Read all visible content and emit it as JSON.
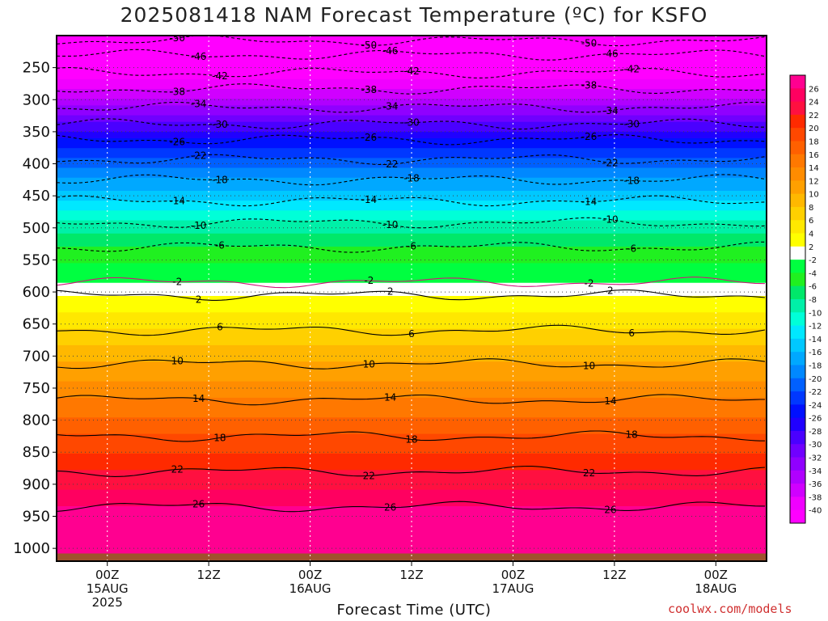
{
  "chart_data": {
    "type": "heatmap",
    "title": "2025081418 NAM Forecast Temperature (ºC) for KSFO",
    "xlabel": "Forecast Time (UTC)",
    "credit": "coolwx.com/models",
    "y_axis": {
      "ticks": [
        250,
        300,
        350,
        400,
        450,
        500,
        550,
        600,
        650,
        700,
        750,
        800,
        850,
        900,
        950,
        1000
      ],
      "range": [
        200,
        1020
      ],
      "direction": "pressure decreasing upward"
    },
    "x_axis": {
      "range_hours": [
        -6,
        78
      ],
      "ticks": [
        {
          "hour": 0,
          "lines": [
            "00Z",
            "15AUG",
            "2025"
          ]
        },
        {
          "hour": 12,
          "lines": [
            "12Z"
          ]
        },
        {
          "hour": 24,
          "lines": [
            "00Z",
            "16AUG"
          ]
        },
        {
          "hour": 36,
          "lines": [
            "12Z"
          ]
        },
        {
          "hour": 48,
          "lines": [
            "00Z",
            "17AUG"
          ]
        },
        {
          "hour": 60,
          "lines": [
            "12Z"
          ]
        },
        {
          "hour": 72,
          "lines": [
            "00Z",
            "18AUG"
          ]
        }
      ]
    },
    "colorbar": {
      "labels": [
        26,
        24,
        22,
        20,
        18,
        16,
        14,
        12,
        10,
        8,
        6,
        4,
        2,
        -2,
        -4,
        -6,
        -8,
        -10,
        -12,
        -14,
        -16,
        -18,
        -20,
        -22,
        -24,
        -26,
        -28,
        -30,
        -32,
        -34,
        -36,
        -38,
        -40
      ],
      "colors": [
        "#ff0090",
        "#ff0060",
        "#ff1040",
        "#ff2a00",
        "#ff4800",
        "#ff6000",
        "#ff7800",
        "#ff8c00",
        "#ffa000",
        "#ffb800",
        "#ffd000",
        "#ffe800",
        "#ffff00",
        "#ffffff",
        "#00ff40",
        "#20f020",
        "#00e86a",
        "#00f0a8",
        "#00ffd8",
        "#00e8ff",
        "#00c8ff",
        "#00a8ff",
        "#0088ff",
        "#0060ff",
        "#0038ff",
        "#0010ff",
        "#2000ff",
        "#4a00ff",
        "#7000ff",
        "#9000ff",
        "#b000ff",
        "#d000ff",
        "#f000ff",
        "#ff00ff"
      ]
    },
    "isotherms": [
      {
        "value": -50,
        "pressure": 208
      },
      {
        "value": -46,
        "pressure": 230
      },
      {
        "value": -42,
        "pressure": 258
      },
      {
        "value": -38,
        "pressure": 283
      },
      {
        "value": -34,
        "pressure": 312
      },
      {
        "value": -30,
        "pressure": 338
      },
      {
        "value": -26,
        "pressure": 362
      },
      {
        "value": -22,
        "pressure": 393
      },
      {
        "value": -18,
        "pressure": 425
      },
      {
        "value": -14,
        "pressure": 458
      },
      {
        "value": -10,
        "pressure": 492
      },
      {
        "value": -6,
        "pressure": 530
      },
      {
        "value": -2,
        "pressure": 585
      },
      {
        "value": 2,
        "pressure": 605
      },
      {
        "value": 6,
        "pressure": 660
      },
      {
        "value": 10,
        "pressure": 712
      },
      {
        "value": 14,
        "pressure": 768
      },
      {
        "value": 18,
        "pressure": 825
      },
      {
        "value": 22,
        "pressure": 880
      },
      {
        "value": 26,
        "pressure": 935
      }
    ],
    "grid": true
  }
}
